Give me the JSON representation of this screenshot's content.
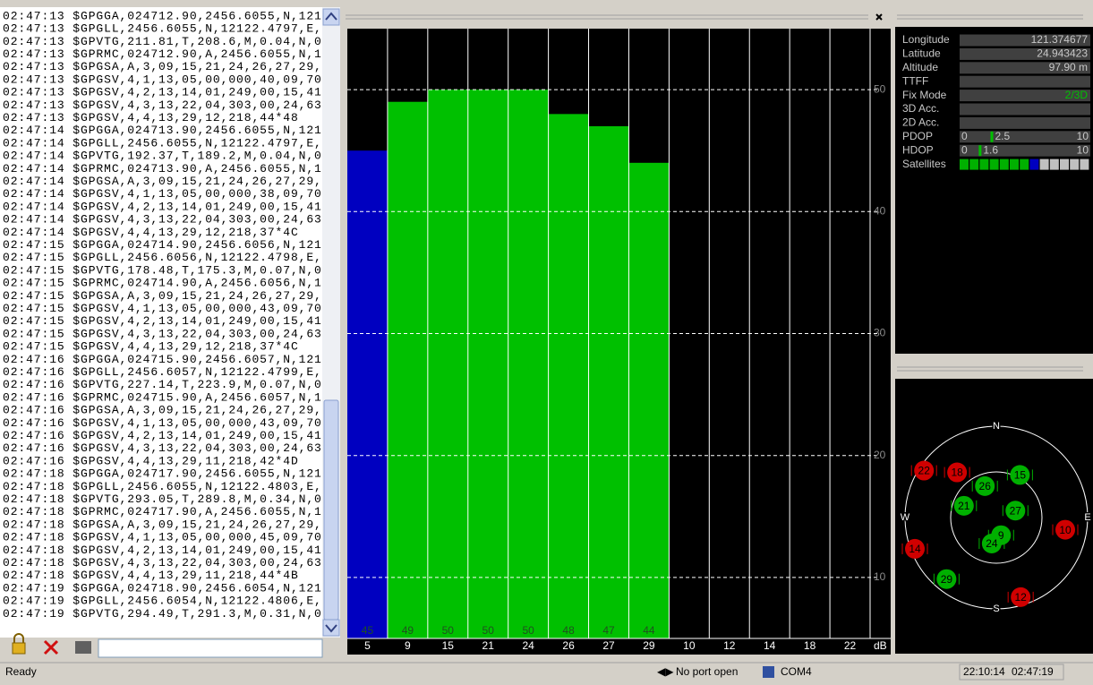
{
  "log": {
    "lines": [
      "02:47:13 $GPGGA,024712.90,2456.6055,N,121",
      "02:47:13 $GPGLL,2456.6055,N,12122.4797,E,",
      "02:47:13 $GPVTG,211.81,T,208.6,M,0.04,N,0",
      "02:47:13 $GPRMC,024712.90,A,2456.6055,N,1",
      "02:47:13 $GPGSA,A,3,09,15,21,24,26,27,29,",
      "02:47:13 $GPGSV,4,1,13,05,00,000,40,09,70",
      "02:47:13 $GPGSV,4,2,13,14,01,249,00,15,41",
      "02:47:13 $GPGSV,4,3,13,22,04,303,00,24,63",
      "02:47:13 $GPGSV,4,4,13,29,12,218,44*48",
      "02:47:14 $GPGGA,024713.90,2456.6055,N,121",
      "02:47:14 $GPGLL,2456.6055,N,12122.4797,E,",
      "02:47:14 $GPVTG,192.37,T,189.2,M,0.04,N,0",
      "02:47:14 $GPRMC,024713.90,A,2456.6055,N,1",
      "02:47:14 $GPGSA,A,3,09,15,21,24,26,27,29,",
      "02:47:14 $GPGSV,4,1,13,05,00,000,38,09,70",
      "02:47:14 $GPGSV,4,2,13,14,01,249,00,15,41",
      "02:47:14 $GPGSV,4,3,13,22,04,303,00,24,63",
      "02:47:14 $GPGSV,4,4,13,29,12,218,37*4C",
      "02:47:15 $GPGGA,024714.90,2456.6056,N,121",
      "02:47:15 $GPGLL,2456.6056,N,12122.4798,E,",
      "02:47:15 $GPVTG,178.48,T,175.3,M,0.07,N,0",
      "02:47:15 $GPRMC,024714.90,A,2456.6056,N,1",
      "02:47:15 $GPGSA,A,3,09,15,21,24,26,27,29,",
      "02:47:15 $GPGSV,4,1,13,05,00,000,43,09,70",
      "02:47:15 $GPGSV,4,2,13,14,01,249,00,15,41",
      "02:47:15 $GPGSV,4,3,13,22,04,303,00,24,63",
      "02:47:15 $GPGSV,4,4,13,29,12,218,37*4C",
      "02:47:16 $GPGGA,024715.90,2456.6057,N,121",
      "02:47:16 $GPGLL,2456.6057,N,12122.4799,E,",
      "02:47:16 $GPVTG,227.14,T,223.9,M,0.07,N,0",
      "02:47:16 $GPRMC,024715.90,A,2456.6057,N,1",
      "02:47:16 $GPGSA,A,3,09,15,21,24,26,27,29,",
      "02:47:16 $GPGSV,4,1,13,05,00,000,43,09,70",
      "02:47:16 $GPGSV,4,2,13,14,01,249,00,15,41",
      "02:47:16 $GPGSV,4,3,13,22,04,303,00,24,63",
      "02:47:16 $GPGSV,4,4,13,29,11,218,42*4D",
      "02:47:18 $GPGGA,024717.90,2456.6055,N,121",
      "02:47:18 $GPGLL,2456.6055,N,12122.4803,E,",
      "02:47:18 $GPVTG,293.05,T,289.8,M,0.34,N,0",
      "02:47:18 $GPRMC,024717.90,A,2456.6055,N,1",
      "02:47:18 $GPGSA,A,3,09,15,21,24,26,27,29,",
      "02:47:18 $GPGSV,4,1,13,05,00,000,45,09,70",
      "02:47:18 $GPGSV,4,2,13,14,01,249,00,15,41",
      "02:47:18 $GPGSV,4,3,13,22,04,303,00,24,63",
      "02:47:18 $GPGSV,4,4,13,29,11,218,44*4B",
      "02:47:19 $GPGGA,024718.90,2456.6054,N,121",
      "02:47:19 $GPGLL,2456.6054,N,12122.4806,E,",
      "02:47:19 $GPVTG,294.49,T,291.3,M,0.31,N,0"
    ]
  },
  "snr_chart": {
    "type": "bar",
    "categories": [
      "5",
      "9",
      "15",
      "21",
      "24",
      "26",
      "27",
      "29",
      "10",
      "12",
      "14",
      "18",
      "22"
    ],
    "values": [
      45,
      49,
      50,
      50,
      50,
      48,
      47,
      44,
      null,
      null,
      null,
      null,
      null
    ],
    "colors": [
      "#0000c0",
      "#00c000",
      "#00c000",
      "#00c000",
      "#00c000",
      "#00c000",
      "#00c000",
      "#00c000",
      null,
      null,
      null,
      null,
      null
    ],
    "ylim": [
      5,
      55
    ],
    "yticks": [
      10,
      20,
      30,
      40,
      50
    ],
    "unit": "dB"
  },
  "info": {
    "rows": [
      {
        "label": "Longitude",
        "value": "121.374677"
      },
      {
        "label": "Latitude",
        "value": "24.943423"
      },
      {
        "label": "Altitude",
        "value": "97.90 m"
      },
      {
        "label": "TTFF"
      },
      {
        "label": "Fix Mode",
        "value": "2/3D",
        "value_color": "#00c000"
      },
      {
        "label": "3D Acc."
      },
      {
        "label": "2D Acc."
      }
    ],
    "dop": [
      {
        "label": "PDOP",
        "min": 0,
        "value": 2.5,
        "max": 10
      },
      {
        "label": "HDOP",
        "min": 0,
        "value": 1.6,
        "max": 10
      }
    ],
    "satellites": {
      "label": "Satellites",
      "boxes": [
        "#00b000",
        "#00b000",
        "#00b000",
        "#00b000",
        "#00b000",
        "#00b000",
        "#00b000",
        "#0000c0",
        "#c0c0c0",
        "#c0c0c0",
        "#c0c0c0",
        "#c0c0c0",
        "#c0c0c0"
      ]
    }
  },
  "sky": {
    "compass": [
      "N",
      "S",
      "W",
      "E"
    ],
    "satellites": [
      {
        "id": "22",
        "azimuth": 303,
        "elevation": 5,
        "color": "#d00000"
      },
      {
        "id": "18",
        "azimuth": 319,
        "elevation": 31,
        "color": "#d00000"
      },
      {
        "id": "15",
        "azimuth": 29,
        "elevation": 42,
        "color": "#00b000"
      },
      {
        "id": "26",
        "azimuth": 340,
        "elevation": 57,
        "color": "#00b000"
      },
      {
        "id": "21",
        "azimuth": 290,
        "elevation": 56,
        "color": "#00b000"
      },
      {
        "id": "27",
        "azimuth": 70,
        "elevation": 70,
        "color": "#00b000"
      },
      {
        "id": "10",
        "azimuth": 100,
        "elevation": 21,
        "color": "#d00000"
      },
      {
        "id": "14",
        "azimuth": 249,
        "elevation": 4,
        "color": "#d00000"
      },
      {
        "id": "9",
        "azimuth": 165,
        "elevation": 72,
        "color": "#00b000"
      },
      {
        "id": "24",
        "azimuth": 190,
        "elevation": 64,
        "color": "#00b000"
      },
      {
        "id": "29",
        "azimuth": 219,
        "elevation": 12,
        "color": "#00b000"
      },
      {
        "id": "12",
        "azimuth": 163,
        "elevation": 8,
        "color": "#d00000"
      }
    ]
  },
  "status": {
    "left": "Ready",
    "port": "No port open",
    "com": "COM4",
    "clock": "22:10:14",
    "gps_time": "02:47:19"
  }
}
